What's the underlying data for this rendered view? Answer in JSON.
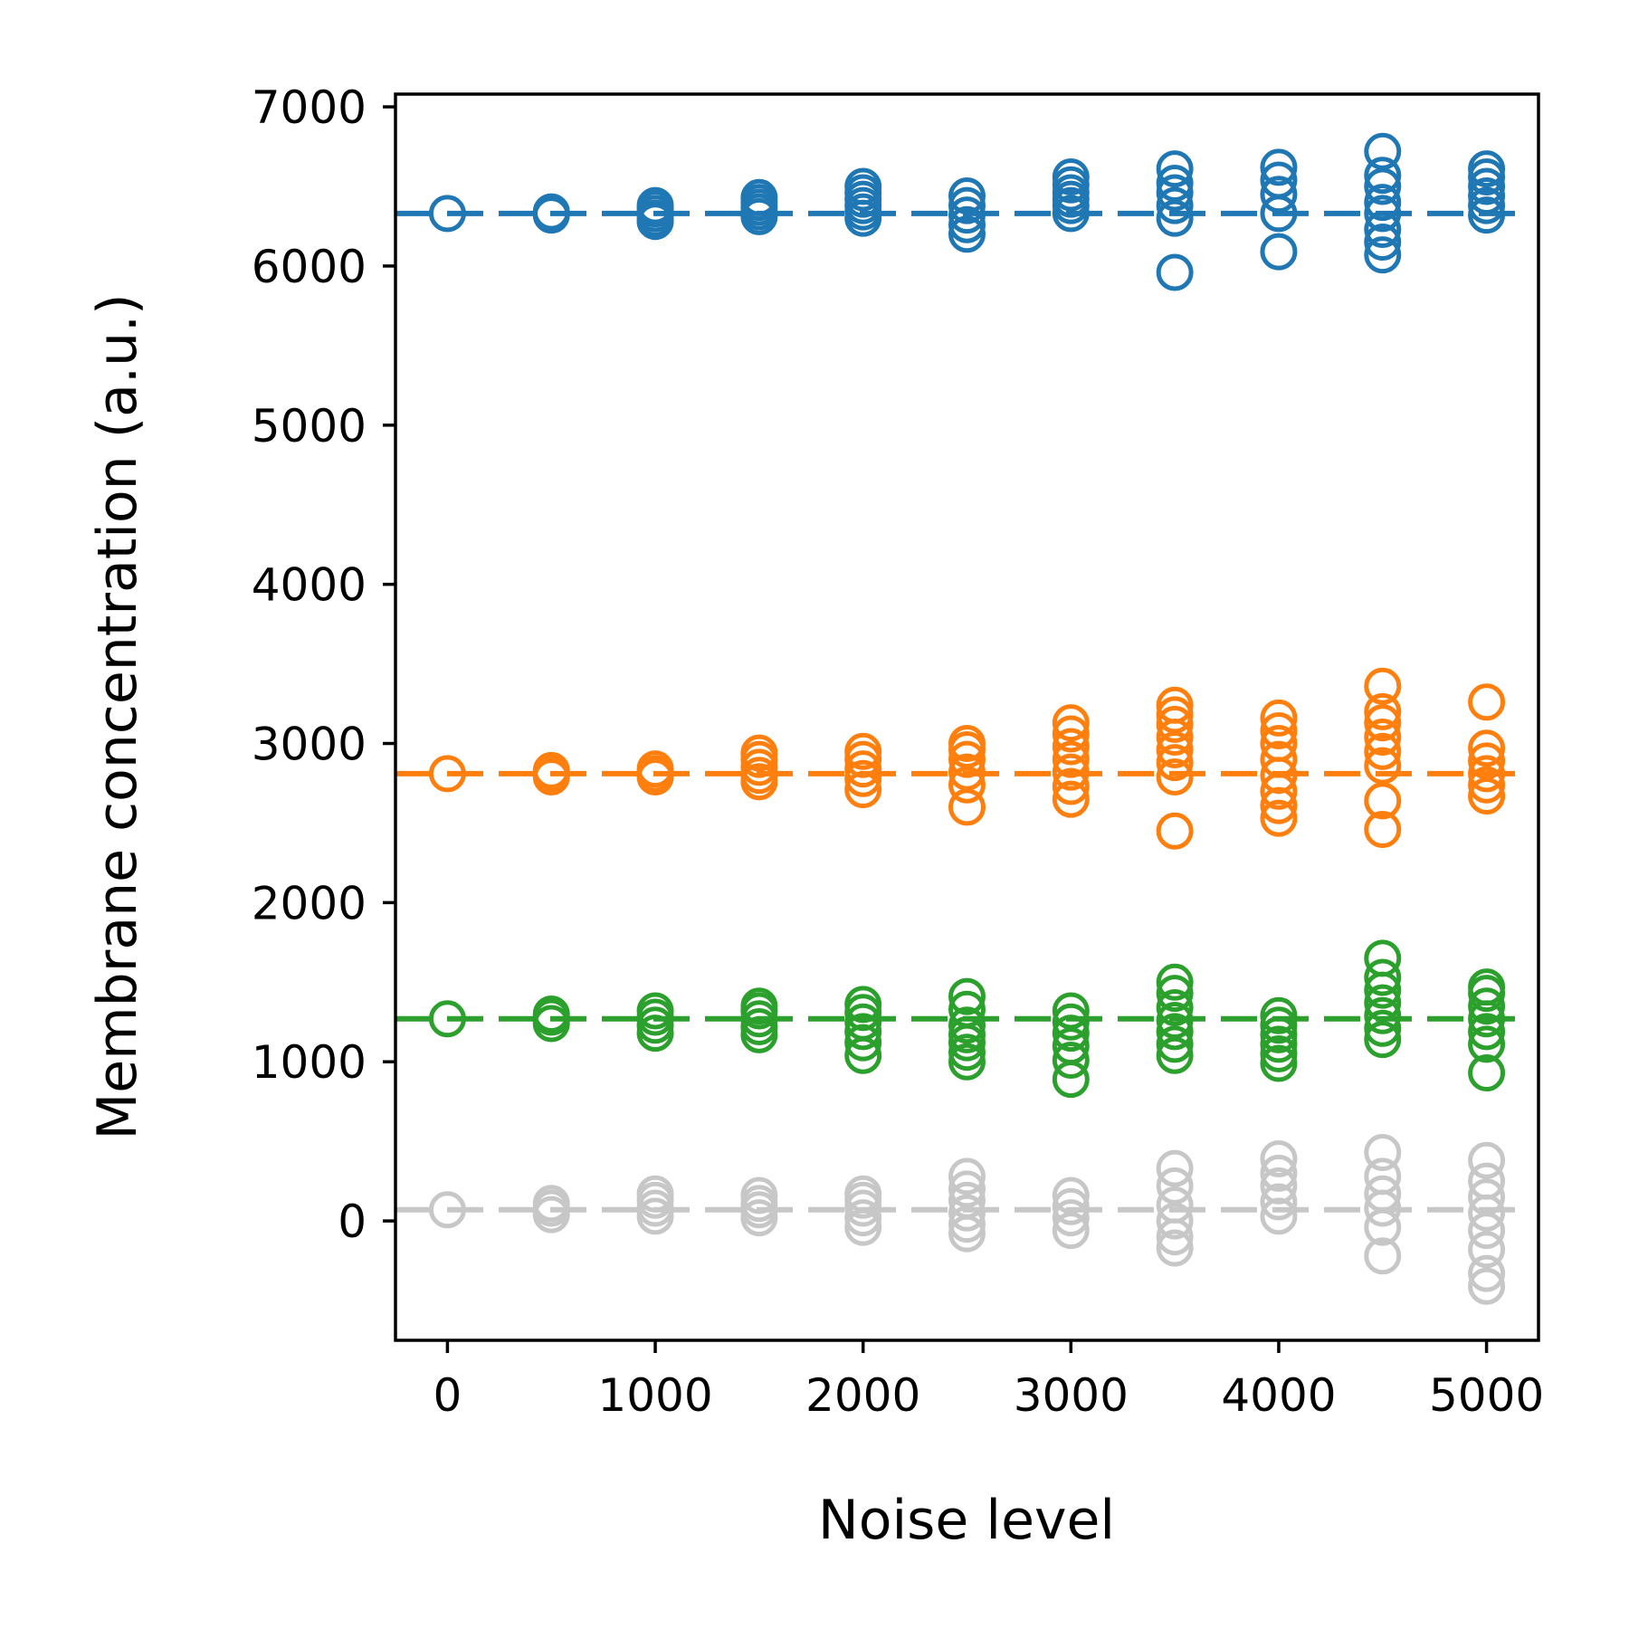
{
  "chart_data": {
    "type": "scatter",
    "title": "",
    "xlabel": "Noise level",
    "ylabel": "Membrane concentration (a.u.)",
    "xlim": [
      -250,
      5250
    ],
    "ylim": [
      -750,
      7080
    ],
    "xticks": [
      0,
      1000,
      2000,
      3000,
      4000,
      5000
    ],
    "yticks": [
      0,
      1000,
      2000,
      3000,
      4000,
      5000,
      6000,
      7000
    ],
    "xtick_labels": [
      "0",
      "1000",
      "2000",
      "3000",
      "4000",
      "5000"
    ],
    "ytick_labels": [
      "0",
      "1000",
      "2000",
      "3000",
      "4000",
      "5000",
      "6000",
      "7000"
    ],
    "grid": false,
    "marker": "open-circle",
    "reference_line_style": "dashed",
    "series": [
      {
        "color": "#1f77b4",
        "reference": 6330,
        "points": [
          {
            "x": 0,
            "y": [
              6330
            ]
          },
          {
            "x": 500,
            "y": [
              6320,
              6330,
              6340
            ]
          },
          {
            "x": 1000,
            "y": [
              6280,
              6300,
              6330,
              6360,
              6380
            ]
          },
          {
            "x": 1500,
            "y": [
              6310,
              6340,
              6370,
              6400,
              6430
            ]
          },
          {
            "x": 2000,
            "y": [
              6300,
              6340,
              6380,
              6420,
              6460,
              6500
            ]
          },
          {
            "x": 2500,
            "y": [
              6200,
              6260,
              6320,
              6380,
              6440
            ]
          },
          {
            "x": 3000,
            "y": [
              6330,
              6380,
              6420,
              6460,
              6510,
              6560
            ]
          },
          {
            "x": 3500,
            "y": [
              5960,
              6300,
              6380,
              6460,
              6520,
              6610
            ]
          },
          {
            "x": 4000,
            "y": [
              6090,
              6330,
              6450,
              6540,
              6620
            ]
          },
          {
            "x": 4500,
            "y": [
              6070,
              6150,
              6230,
              6330,
              6400,
              6500,
              6570,
              6720
            ]
          },
          {
            "x": 5000,
            "y": [
              6320,
              6380,
              6440,
              6500,
              6560,
              6610
            ]
          }
        ]
      },
      {
        "color": "#ff7f0e",
        "reference": 2810,
        "points": [
          {
            "x": 0,
            "y": [
              2810
            ]
          },
          {
            "x": 500,
            "y": [
              2790,
              2810,
              2830
            ]
          },
          {
            "x": 1000,
            "y": [
              2790,
              2810,
              2840
            ]
          },
          {
            "x": 1500,
            "y": [
              2760,
              2800,
              2850,
              2900,
              2940
            ]
          },
          {
            "x": 2000,
            "y": [
              2710,
              2780,
              2840,
              2900,
              2950
            ]
          },
          {
            "x": 2500,
            "y": [
              2600,
              2740,
              2820,
              2900,
              2960,
              3000
            ]
          },
          {
            "x": 3000,
            "y": [
              2650,
              2730,
              2820,
              2900,
              2980,
              3060,
              3130
            ]
          },
          {
            "x": 3500,
            "y": [
              2450,
              2790,
              2880,
              2960,
              3040,
              3120,
              3180,
              3240
            ]
          },
          {
            "x": 4000,
            "y": [
              2530,
              2610,
              2700,
              2800,
              2900,
              3000,
              3080,
              3160
            ]
          },
          {
            "x": 4500,
            "y": [
              2460,
              2640,
              2860,
              2950,
              3040,
              3130,
              3200,
              3360
            ]
          },
          {
            "x": 5000,
            "y": [
              2670,
              2740,
              2810,
              2890,
              2970,
              3260
            ]
          }
        ]
      },
      {
        "color": "#2ca02c",
        "reference": 1270,
        "points": [
          {
            "x": 0,
            "y": [
              1270
            ]
          },
          {
            "x": 500,
            "y": [
              1240,
              1280,
              1300
            ]
          },
          {
            "x": 1000,
            "y": [
              1180,
              1230,
              1280,
              1320
            ]
          },
          {
            "x": 1500,
            "y": [
              1170,
              1220,
              1270,
              1320,
              1350
            ]
          },
          {
            "x": 2000,
            "y": [
              1040,
              1120,
              1190,
              1250,
              1310,
              1360
            ]
          },
          {
            "x": 2500,
            "y": [
              1000,
              1060,
              1120,
              1170,
              1230,
              1330,
              1410
            ]
          },
          {
            "x": 3000,
            "y": [
              890,
              1010,
              1100,
              1180,
              1250,
              1320
            ]
          },
          {
            "x": 3500,
            "y": [
              1040,
              1110,
              1190,
              1260,
              1340,
              1430,
              1500
            ]
          },
          {
            "x": 4000,
            "y": [
              990,
              1050,
              1110,
              1170,
              1230,
              1290
            ]
          },
          {
            "x": 4500,
            "y": [
              1140,
              1210,
              1290,
              1370,
              1450,
              1530,
              1650
            ]
          },
          {
            "x": 5000,
            "y": [
              930,
              1110,
              1190,
              1270,
              1350,
              1430,
              1470
            ]
          }
        ]
      },
      {
        "color": "#c7c7c7",
        "reference": 70,
        "points": [
          {
            "x": 0,
            "y": [
              70
            ]
          },
          {
            "x": 500,
            "y": [
              40,
              80,
              110
            ]
          },
          {
            "x": 1000,
            "y": [
              30,
              80,
              130,
              170
            ]
          },
          {
            "x": 1500,
            "y": [
              20,
              70,
              110,
              160
            ]
          },
          {
            "x": 2000,
            "y": [
              -40,
              20,
              80,
              130,
              170
            ]
          },
          {
            "x": 2500,
            "y": [
              -80,
              -20,
              50,
              130,
              200,
              280
            ]
          },
          {
            "x": 3000,
            "y": [
              -60,
              20,
              90,
              160
            ]
          },
          {
            "x": 3500,
            "y": [
              -170,
              -100,
              0,
              100,
              220,
              330
            ]
          },
          {
            "x": 4000,
            "y": [
              30,
              120,
              220,
              300,
              390
            ]
          },
          {
            "x": 4500,
            "y": [
              -220,
              -40,
              80,
              170,
              280,
              430
            ]
          },
          {
            "x": 5000,
            "y": [
              -410,
              -330,
              -180,
              -60,
              50,
              150,
              250,
              380
            ]
          }
        ]
      }
    ]
  }
}
